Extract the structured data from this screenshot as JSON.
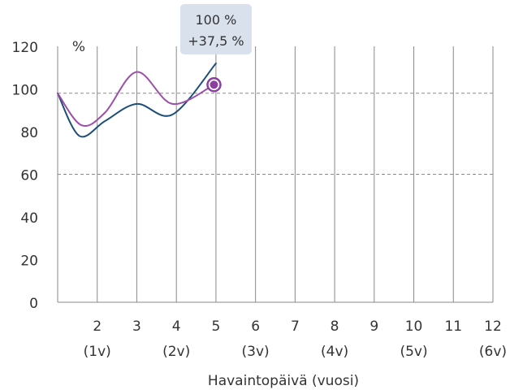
{
  "chart_data": {
    "type": "line",
    "xlabel": "Havaintopäivä (vuosi)",
    "ylabel": "%",
    "ylim": [
      0,
      120
    ],
    "xlim": [
      1,
      12
    ],
    "yticks": [
      0,
      20,
      40,
      60,
      80,
      100,
      120
    ],
    "xticks": [
      {
        "x": 2,
        "label": "2",
        "sub": "(1v)"
      },
      {
        "x": 3,
        "label": "3",
        "sub": ""
      },
      {
        "x": 4,
        "label": "4",
        "sub": "(2v)"
      },
      {
        "x": 5,
        "label": "5",
        "sub": ""
      },
      {
        "x": 6,
        "label": "6",
        "sub": "(3v)"
      },
      {
        "x": 7,
        "label": "7",
        "sub": ""
      },
      {
        "x": 8,
        "label": "8",
        "sub": "(4v)"
      },
      {
        "x": 9,
        "label": "9",
        "sub": ""
      },
      {
        "x": 10,
        "label": "10",
        "sub": "(5v)"
      },
      {
        "x": 11,
        "label": "11",
        "sub": ""
      },
      {
        "x": 12,
        "label": "12",
        "sub": "(6v)"
      }
    ],
    "reference_lines": [
      98,
      60
    ],
    "series": [
      {
        "color": "#1b4f7a",
        "points": [
          [
            1,
            98
          ],
          [
            1.55,
            78
          ],
          [
            2.2,
            85
          ],
          [
            3,
            93
          ],
          [
            3.9,
            88
          ],
          [
            5,
            112
          ]
        ]
      },
      {
        "color": "#9b4fa8",
        "points": [
          [
            1,
            98
          ],
          [
            1.6,
            83
          ],
          [
            2.2,
            89
          ],
          [
            3,
            108
          ],
          [
            3.9,
            93
          ],
          [
            4.95,
            102
          ]
        ]
      }
    ],
    "highlight": {
      "x": 4.95,
      "y": 102,
      "color": "#8b3fa0",
      "label_lines": [
        "100 %",
        "+37,5 %"
      ]
    }
  }
}
